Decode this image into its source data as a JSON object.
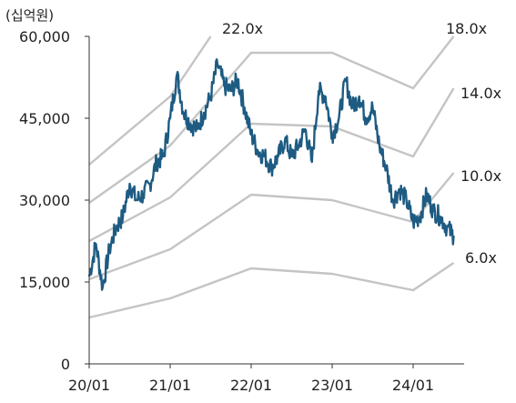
{
  "chart_data": {
    "type": "line",
    "unit_label": "(십억원)",
    "x_ticks": [
      "20/01",
      "21/01",
      "22/01",
      "23/01",
      "24/01"
    ],
    "y_ticks": [
      "60,000",
      "45,000",
      "30,000",
      "15,000",
      "0"
    ],
    "ylim": [
      0,
      60000
    ],
    "xlim": [
      "2020-01",
      "2024-07"
    ],
    "grid": false,
    "colors": {
      "market_cap": "#1e5b82",
      "bands": "#c4c4c4",
      "axis": "#333333",
      "text": "#222222"
    },
    "bands": [
      {
        "label": "22.0x",
        "points": [
          [
            "2020-01",
            36500
          ],
          [
            "2021-01",
            49000
          ],
          [
            "2021-07",
            60000
          ]
        ]
      },
      {
        "label": "18.0x",
        "points": [
          [
            "2020-01",
            29500
          ],
          [
            "2021-01",
            40000
          ],
          [
            "2022-01",
            57000
          ],
          [
            "2023-01",
            57000
          ],
          [
            "2024-01",
            50500
          ],
          [
            "2024-07",
            60000
          ]
        ]
      },
      {
        "label": "14.0x",
        "points": [
          [
            "2020-01",
            22500
          ],
          [
            "2021-01",
            30500
          ],
          [
            "2022-01",
            44000
          ],
          [
            "2023-01",
            43500
          ],
          [
            "2024-01",
            38000
          ],
          [
            "2024-07",
            50500
          ]
        ]
      },
      {
        "label": "10.0x",
        "points": [
          [
            "2020-01",
            15500
          ],
          [
            "2021-01",
            21000
          ],
          [
            "2022-01",
            31000
          ],
          [
            "2023-01",
            30000
          ],
          [
            "2024-01",
            26000
          ],
          [
            "2024-07",
            35000
          ]
        ]
      },
      {
        "label": "6.0x",
        "points": [
          [
            "2020-01",
            8500
          ],
          [
            "2021-01",
            12000
          ],
          [
            "2022-01",
            17500
          ],
          [
            "2023-01",
            16500
          ],
          [
            "2024-01",
            13500
          ],
          [
            "2024-07",
            18500
          ]
        ]
      }
    ],
    "series": [
      {
        "points": [
          [
            "2020-01",
            16000
          ],
          [
            "2020-02",
            22000
          ],
          [
            "2020-03",
            14000
          ],
          [
            "2020-04",
            21000
          ],
          [
            "2020-05",
            25000
          ],
          [
            "2020-06",
            27000
          ],
          [
            "2020-07",
            33000
          ],
          [
            "2020-08",
            30000
          ],
          [
            "2020-09",
            31000
          ],
          [
            "2020-10",
            33000
          ],
          [
            "2020-11",
            37000
          ],
          [
            "2020-12",
            38000
          ],
          [
            "2021-01",
            45000
          ],
          [
            "2021-02",
            53000
          ],
          [
            "2021-03",
            46000
          ],
          [
            "2021-04",
            44000
          ],
          [
            "2021-05",
            43000
          ],
          [
            "2021-06",
            46000
          ],
          [
            "2021-07",
            49000
          ],
          [
            "2021-08",
            55000
          ],
          [
            "2021-09",
            51000
          ],
          [
            "2021-10",
            50000
          ],
          [
            "2021-11",
            52000
          ],
          [
            "2021-12",
            47000
          ],
          [
            "2022-01",
            42000
          ],
          [
            "2022-02",
            39000
          ],
          [
            "2022-03",
            38000
          ],
          [
            "2022-04",
            36000
          ],
          [
            "2022-05",
            38000
          ],
          [
            "2022-06",
            41000
          ],
          [
            "2022-07",
            38000
          ],
          [
            "2022-08",
            40000
          ],
          [
            "2022-09",
            43000
          ],
          [
            "2022-10",
            37000
          ],
          [
            "2022-11",
            50000
          ],
          [
            "2022-12",
            49000
          ],
          [
            "2023-01",
            42000
          ],
          [
            "2023-02",
            45000
          ],
          [
            "2023-03",
            52000
          ],
          [
            "2023-04",
            47000
          ],
          [
            "2023-05",
            49000
          ],
          [
            "2023-06",
            45000
          ],
          [
            "2023-07",
            47000
          ],
          [
            "2023-08",
            40000
          ],
          [
            "2023-09",
            36000
          ],
          [
            "2023-10",
            30000
          ],
          [
            "2023-11",
            32000
          ],
          [
            "2023-12",
            30000
          ],
          [
            "2024-01",
            26000
          ],
          [
            "2024-02",
            27000
          ],
          [
            "2024-03",
            31000
          ],
          [
            "2024-04",
            28000
          ],
          [
            "2024-05",
            27000
          ],
          [
            "2024-06",
            25000
          ],
          [
            "2024-07",
            23500
          ]
        ]
      }
    ]
  }
}
